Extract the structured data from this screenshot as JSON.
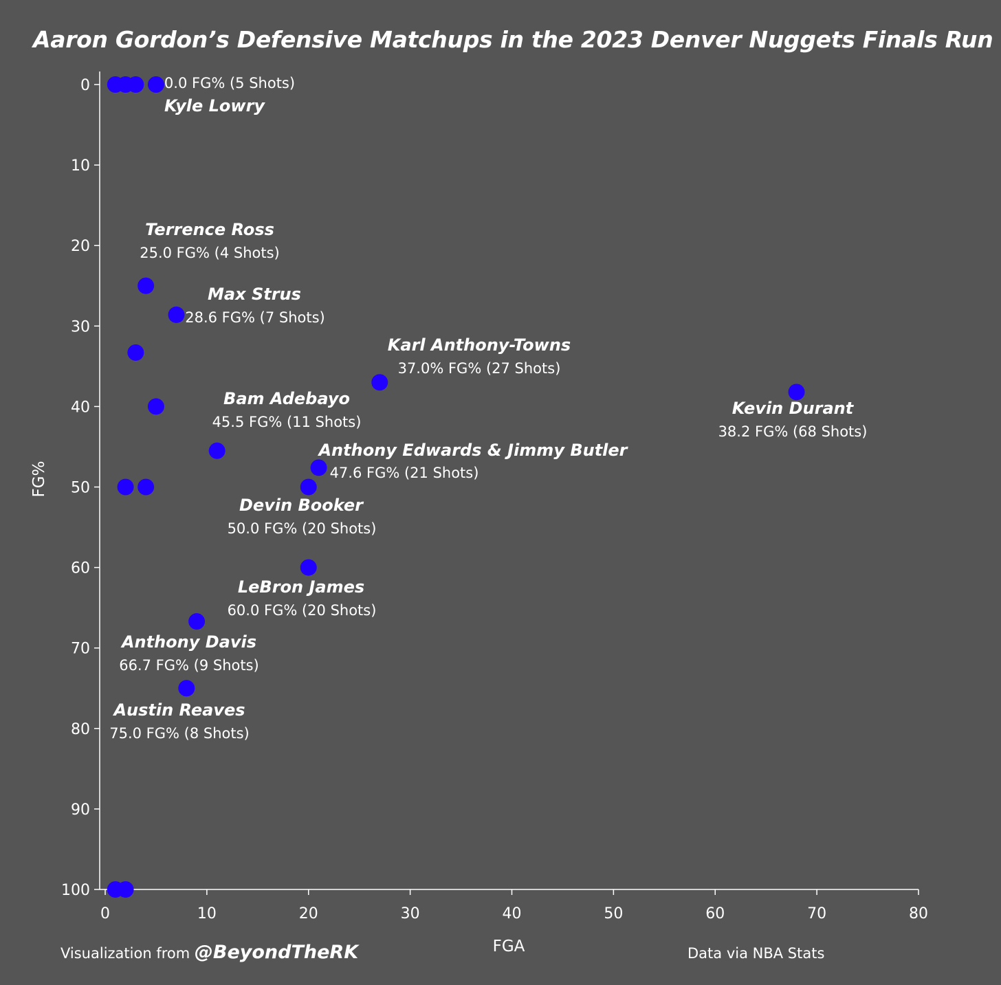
{
  "header": {
    "title": "Aaron Gordon’s Defensive Matchups in the 2023 Denver Nuggets Finals Run"
  },
  "footer": {
    "credit_prefix": "Visualization from",
    "credit_handle": "@BeyondTheRK",
    "source": "Data via NBA Stats"
  },
  "colors": {
    "background": "#555555",
    "point": "#2200ff",
    "text": "#ffffff",
    "axis": "#ffffff"
  },
  "chart_data": {
    "type": "scatter",
    "title": "Aaron Gordon’s Defensive Matchups in the 2023 Denver Nuggets Finals Run",
    "xlabel": "FGA",
    "ylabel": "FG%",
    "xlim": [
      0,
      80
    ],
    "ylim": [
      0,
      100
    ],
    "y_reversed": true,
    "x_ticks": [
      0,
      10,
      20,
      30,
      40,
      50,
      60,
      70,
      80
    ],
    "y_ticks": [
      0,
      10,
      20,
      30,
      40,
      50,
      60,
      70,
      80,
      90,
      100
    ],
    "grid": false,
    "points": [
      {
        "x": 1,
        "y": 0
      },
      {
        "x": 2,
        "y": 0
      },
      {
        "x": 3,
        "y": 0
      },
      {
        "x": 5,
        "y": 0,
        "name": "Kyle Lowry",
        "stat": "0.0 FG% (5 Shots)"
      },
      {
        "x": 4,
        "y": 25,
        "name": "Terrence Ross",
        "stat": "25.0 FG% (4 Shots)"
      },
      {
        "x": 7,
        "y": 28.6,
        "name": "Max Strus",
        "stat": "28.6 FG% (7 Shots)"
      },
      {
        "x": 3,
        "y": 33.3
      },
      {
        "x": 27,
        "y": 37,
        "name": "Karl Anthony-Towns",
        "stat": "37.0% FG% (27 Shots)"
      },
      {
        "x": 68,
        "y": 38.2,
        "name": "Kevin Durant",
        "stat": "38.2 FG% (68 Shots)"
      },
      {
        "x": 5,
        "y": 40
      },
      {
        "x": 11,
        "y": 45.5,
        "name": "Bam Adebayo",
        "stat": "45.5 FG% (11 Shots)"
      },
      {
        "x": 21,
        "y": 47.6,
        "name": "Anthony Edwards & Jimmy Butler",
        "stat": "47.6 FG% (21 Shots)"
      },
      {
        "x": 2,
        "y": 50
      },
      {
        "x": 4,
        "y": 50
      },
      {
        "x": 20,
        "y": 50,
        "name": "Devin Booker",
        "stat": "50.0 FG% (20 Shots)"
      },
      {
        "x": 20,
        "y": 60,
        "name": "LeBron James",
        "stat": "60.0 FG% (20 Shots)"
      },
      {
        "x": 9,
        "y": 66.7,
        "name": "Anthony Davis",
        "stat": "66.7 FG% (9 Shots)"
      },
      {
        "x": 8,
        "y": 75,
        "name": "Austin Reaves",
        "stat": "75.0 FG% (8 Shots)"
      },
      {
        "x": 1,
        "y": 100
      },
      {
        "x": 2,
        "y": 100
      }
    ]
  }
}
